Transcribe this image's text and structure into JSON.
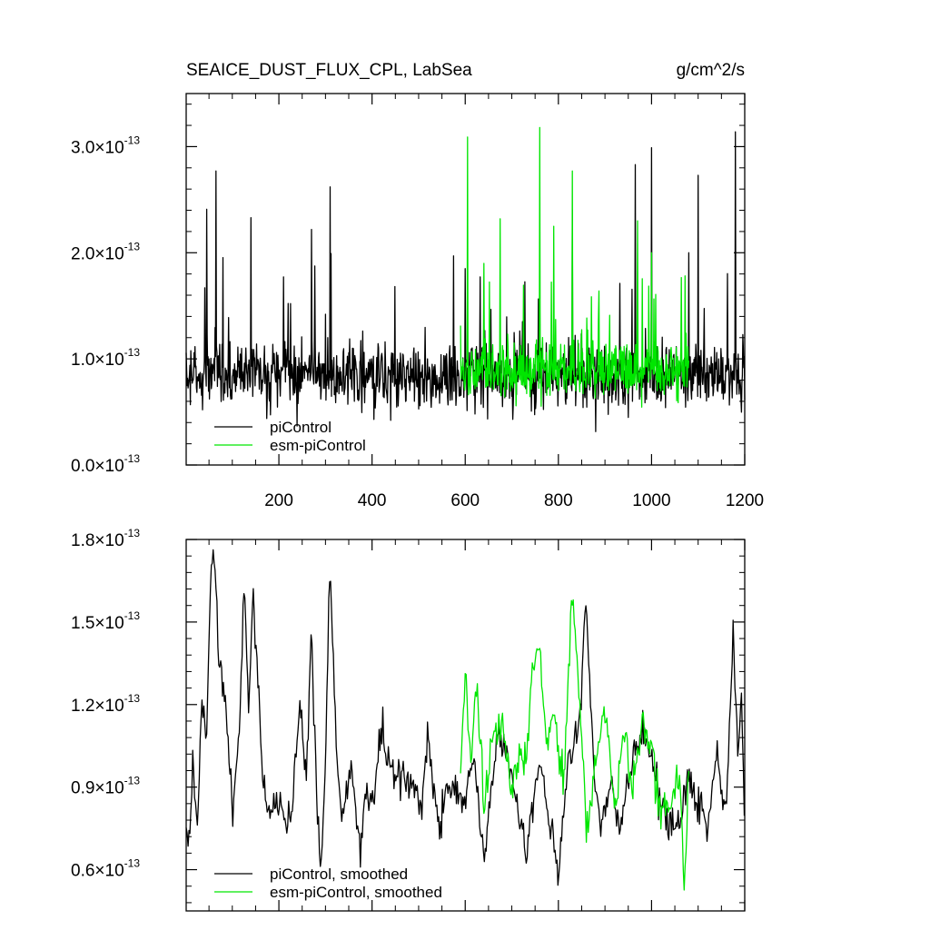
{
  "figure": {
    "title_left": "SEAICE_DUST_FLUX_CPL, LabSea",
    "title_right": "g/cm^2/s"
  },
  "colors": {
    "piControl": "#000000",
    "esm_piControl": "#00e600",
    "frame": "#000000"
  },
  "chart_data": [
    {
      "type": "line",
      "title": "SEAICE_DUST_FLUX_CPL, LabSea",
      "units": "g/cm^2/s",
      "xlim": [
        1,
        1200
      ],
      "ylim": [
        0.0,
        0.35
      ],
      "x_ticks": [
        200,
        400,
        600,
        800,
        1000,
        1200
      ],
      "x_tick_labels": [
        "200",
        "400",
        "600",
        "800",
        "1000",
        "1200"
      ],
      "y_ticks": [
        0.0,
        0.1,
        0.2,
        0.3
      ],
      "y_tick_mantissa": [
        "0.0",
        "1.0",
        "2.0",
        "3.0"
      ],
      "y_tick_exponent": "-13",
      "legend_position": "bottom-left",
      "series": [
        {
          "name": "piControl",
          "x_range": [
            1,
            1200
          ],
          "mean": 0.085,
          "sd": 0.026,
          "min": 0.025,
          "peaks": [
            [
              65,
              0.277
            ],
            [
              310,
              0.262
            ],
            [
              1180,
              0.314
            ],
            [
              965,
              0.283
            ],
            [
              1000,
              0.299
            ],
            [
              1100,
              0.273
            ],
            [
              140,
              0.233
            ],
            [
              45,
              0.241
            ],
            [
              270,
              0.222
            ],
            [
              575,
              0.197
            ],
            [
              600,
              0.185
            ],
            [
              830,
              0.24
            ],
            [
              1080,
              0.2
            ]
          ]
        },
        {
          "name": "esm-piControl",
          "x_range": [
            590,
            1080
          ],
          "mean": 0.09,
          "sd": 0.025,
          "min": 0.02,
          "peaks": [
            [
              605,
              0.309
            ],
            [
              760,
              0.318
            ],
            [
              830,
              0.277
            ],
            [
              675,
              0.232
            ],
            [
              790,
              0.225
            ],
            [
              970,
              0.23
            ],
            [
              1000,
              0.2
            ],
            [
              640,
              0.19
            ]
          ]
        }
      ]
    },
    {
      "type": "line",
      "xlim": [
        1,
        1200
      ],
      "ylim": [
        0.045,
        0.18
      ],
      "x_ticks": [
        200,
        400,
        600,
        800,
        1000,
        1200
      ],
      "y_ticks": [
        0.06,
        0.09,
        0.12,
        0.15,
        0.18
      ],
      "y_tick_mantissa": [
        "0.6",
        "0.9",
        "1.2",
        "1.5",
        "1.8"
      ],
      "y_tick_exponent": "-13",
      "legend_position": "bottom-left",
      "series": [
        {
          "name": "piControl, smoothed",
          "x_range": [
            1,
            1200
          ],
          "keypoints": [
            [
              1,
              0.076
            ],
            [
              8,
              0.068
            ],
            [
              15,
              0.095
            ],
            [
              25,
              0.078
            ],
            [
              35,
              0.121
            ],
            [
              45,
              0.107
            ],
            [
              55,
              0.171
            ],
            [
              62,
              0.175
            ],
            [
              70,
              0.14
            ],
            [
              80,
              0.125
            ],
            [
              90,
              0.109
            ],
            [
              100,
              0.083
            ],
            [
              115,
              0.108
            ],
            [
              125,
              0.166
            ],
            [
              135,
              0.118
            ],
            [
              145,
              0.161
            ],
            [
              158,
              0.12
            ],
            [
              165,
              0.09
            ],
            [
              180,
              0.083
            ],
            [
              200,
              0.085
            ],
            [
              215,
              0.075
            ],
            [
              230,
              0.085
            ],
            [
              245,
              0.123
            ],
            [
              258,
              0.09
            ],
            [
              270,
              0.145
            ],
            [
              280,
              0.092
            ],
            [
              290,
              0.056
            ],
            [
              300,
              0.1
            ],
            [
              310,
              0.173
            ],
            [
              320,
              0.118
            ],
            [
              335,
              0.077
            ],
            [
              355,
              0.098
            ],
            [
              375,
              0.065
            ],
            [
              385,
              0.09
            ],
            [
              405,
              0.086
            ],
            [
              420,
              0.113
            ],
            [
              440,
              0.097
            ],
            [
              470,
              0.095
            ],
            [
              490,
              0.092
            ],
            [
              505,
              0.083
            ],
            [
              520,
              0.107
            ],
            [
              545,
              0.073
            ],
            [
              560,
              0.091
            ],
            [
              580,
              0.088
            ],
            [
              600,
              0.085
            ],
            [
              620,
              0.1
            ],
            [
              640,
              0.062
            ],
            [
              670,
              0.112
            ],
            [
              700,
              0.094
            ],
            [
              730,
              0.065
            ],
            [
              760,
              0.1
            ],
            [
              790,
              0.068
            ],
            [
              800,
              0.057
            ],
            [
              820,
              0.1
            ],
            [
              845,
              0.112
            ],
            [
              860,
              0.158
            ],
            [
              875,
              0.1
            ],
            [
              890,
              0.074
            ],
            [
              910,
              0.093
            ],
            [
              930,
              0.074
            ],
            [
              960,
              0.102
            ],
            [
              985,
              0.111
            ],
            [
              1005,
              0.098
            ],
            [
              1030,
              0.077
            ],
            [
              1060,
              0.075
            ],
            [
              1080,
              0.095
            ],
            [
              1100,
              0.085
            ],
            [
              1120,
              0.074
            ],
            [
              1140,
              0.103
            ],
            [
              1160,
              0.079
            ],
            [
              1175,
              0.146
            ],
            [
              1185,
              0.1
            ],
            [
              1193,
              0.126
            ],
            [
              1200,
              0.073
            ]
          ]
        },
        {
          "name": "esm-piControl, smoothed",
          "x_range": [
            590,
            1080
          ],
          "keypoints": [
            [
              590,
              0.09
            ],
            [
              600,
              0.132
            ],
            [
              612,
              0.1
            ],
            [
              625,
              0.126
            ],
            [
              640,
              0.085
            ],
            [
              660,
              0.11
            ],
            [
              680,
              0.112
            ],
            [
              700,
              0.089
            ],
            [
              715,
              0.105
            ],
            [
              730,
              0.095
            ],
            [
              745,
              0.132
            ],
            [
              760,
              0.141
            ],
            [
              775,
              0.106
            ],
            [
              790,
              0.12
            ],
            [
              810,
              0.09
            ],
            [
              830,
              0.162
            ],
            [
              845,
              0.124
            ],
            [
              860,
              0.072
            ],
            [
              880,
              0.1
            ],
            [
              900,
              0.12
            ],
            [
              920,
              0.081
            ],
            [
              940,
              0.112
            ],
            [
              960,
              0.088
            ],
            [
              980,
              0.114
            ],
            [
              1000,
              0.104
            ],
            [
              1020,
              0.081
            ],
            [
              1040,
              0.085
            ],
            [
              1060,
              0.096
            ],
            [
              1070,
              0.051
            ],
            [
              1080,
              0.093
            ]
          ]
        }
      ]
    }
  ]
}
